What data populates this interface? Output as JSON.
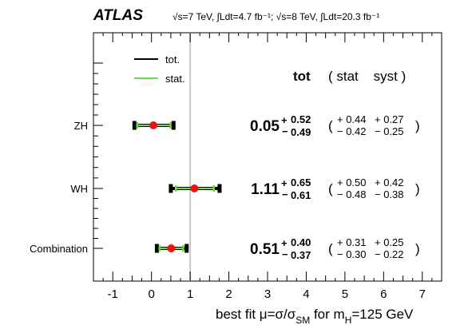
{
  "chart_data": {
    "type": "forest",
    "experiment": "ATLAS",
    "energy_label": "√s=7 TeV, ∫Ldt=4.7 fb⁻¹; √s=8 TeV, ∫Ldt=20.3 fb⁻¹",
    "xlabel": "best fit μ=σ/σSM for mH=125 GeV",
    "xlim": [
      -1.5,
      7.5
    ],
    "xticks": [
      -1,
      0,
      1,
      2,
      3,
      4,
      5,
      6,
      7
    ],
    "reference_line": 1,
    "legend": {
      "placement": "top-left",
      "entries": [
        "tot.",
        "stat."
      ]
    },
    "column_header": {
      "tot": "tot",
      "stat_syst": "( stat    syst )"
    },
    "series": [
      {
        "name": "ZH",
        "mu": 0.05,
        "tot_up": 0.52,
        "tot_down": 0.49,
        "stat_up": 0.44,
        "stat_down": 0.42,
        "syst_up": 0.27,
        "syst_down": 0.25
      },
      {
        "name": "WH",
        "mu": 1.11,
        "tot_up": 0.65,
        "tot_down": 0.61,
        "stat_up": 0.5,
        "stat_down": 0.48,
        "syst_up": 0.42,
        "syst_down": 0.38
      },
      {
        "name": "Combination",
        "mu": 0.51,
        "tot_up": 0.4,
        "tot_down": 0.37,
        "stat_up": 0.31,
        "stat_down": 0.3,
        "syst_up": 0.25,
        "syst_down": 0.22
      }
    ],
    "colors": {
      "total": "#000000",
      "stat": "#66dd44",
      "point": "#ee1111",
      "reference": "#c8c8c8"
    }
  }
}
